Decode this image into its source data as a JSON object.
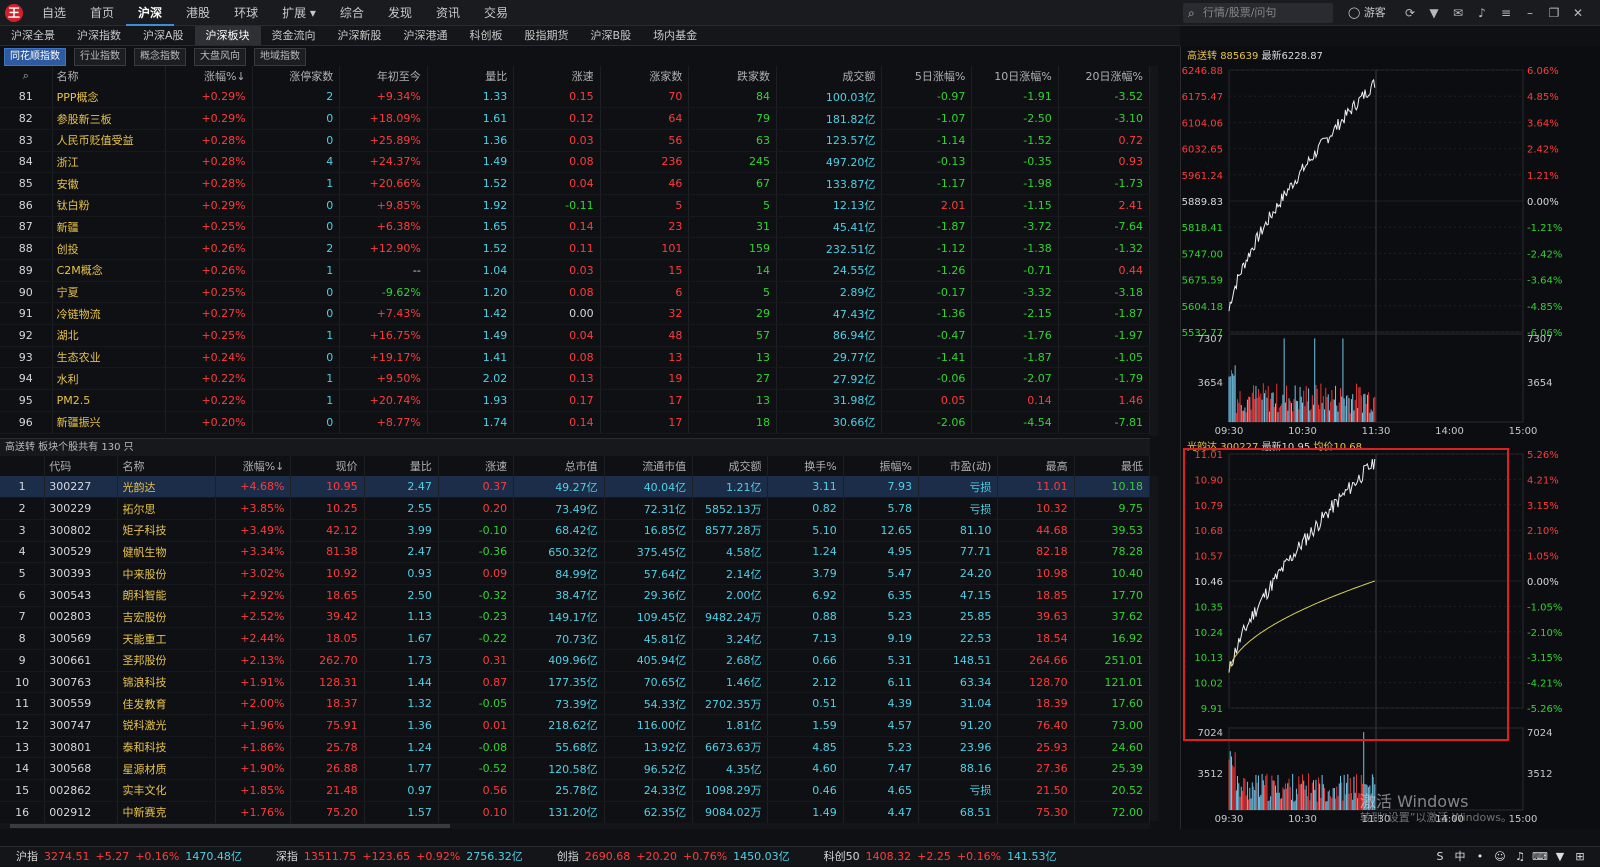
{
  "app": {
    "logo_char": "王"
  },
  "topnav": [
    "自选",
    "首页",
    "沪深",
    "港股",
    "环球",
    "扩展 ▾",
    "综合",
    "发现",
    "资讯",
    "交易"
  ],
  "search": {
    "placeholder": "行情/股票/问句"
  },
  "user": "游客",
  "tabs1": [
    "沪深全景",
    "沪深指数",
    "沪深A股",
    "沪深板块",
    "资金流向",
    "沪深新股",
    "沪深港通",
    "科创板",
    "股指期货",
    "沪深B股",
    "场内基金"
  ],
  "tabs2": [
    "同花顺指数",
    "行业指数",
    "概念指数",
    "大盘风向",
    "地域指数"
  ],
  "table1": {
    "headers": [
      "",
      "名称",
      "涨幅%↓",
      "涨停家数",
      "年初至今",
      "量比",
      "涨速",
      "涨家数",
      "跌家数",
      "成交额",
      "5日涨幅%",
      "10日涨幅%",
      "20日涨幅%"
    ],
    "rows": [
      [
        "81",
        "PPP概念",
        "+0.29%",
        "2",
        "+9.34%",
        "1.33",
        "0.15",
        "70",
        "84",
        "100.03亿",
        "-0.97",
        "-1.91",
        "-3.52"
      ],
      [
        "82",
        "参股新三板",
        "+0.29%",
        "0",
        "+18.09%",
        "1.61",
        "0.12",
        "64",
        "79",
        "181.82亿",
        "-1.07",
        "-2.50",
        "-3.10"
      ],
      [
        "83",
        "人民币贬值受益",
        "+0.28%",
        "0",
        "+25.89%",
        "1.36",
        "0.03",
        "56",
        "63",
        "123.57亿",
        "-1.14",
        "-1.52",
        "0.72"
      ],
      [
        "84",
        "浙江",
        "+0.28%",
        "4",
        "+24.37%",
        "1.49",
        "0.08",
        "236",
        "245",
        "497.20亿",
        "-0.13",
        "-0.35",
        "0.93"
      ],
      [
        "85",
        "安徽",
        "+0.28%",
        "1",
        "+20.66%",
        "1.52",
        "0.04",
        "46",
        "67",
        "133.87亿",
        "-1.17",
        "-1.98",
        "-1.73"
      ],
      [
        "86",
        "钛白粉",
        "+0.29%",
        "0",
        "+9.85%",
        "1.92",
        "-0.11",
        "5",
        "5",
        "12.13亿",
        "2.01",
        "-1.15",
        "2.41"
      ],
      [
        "87",
        "新疆",
        "+0.25%",
        "0",
        "+6.38%",
        "1.65",
        "0.14",
        "23",
        "31",
        "45.41亿",
        "-1.87",
        "-3.72",
        "-7.64"
      ],
      [
        "88",
        "创投",
        "+0.26%",
        "2",
        "+12.90%",
        "1.52",
        "0.11",
        "101",
        "159",
        "232.51亿",
        "-1.12",
        "-1.38",
        "-1.32"
      ],
      [
        "89",
        "C2M概念",
        "+0.26%",
        "1",
        "--",
        "1.04",
        "0.03",
        "15",
        "14",
        "24.55亿",
        "-1.26",
        "-0.71",
        "0.44"
      ],
      [
        "90",
        "宁夏",
        "+0.25%",
        "0",
        "-9.62%",
        "1.20",
        "0.08",
        "6",
        "5",
        "2.89亿",
        "-0.17",
        "-3.32",
        "-3.18"
      ],
      [
        "91",
        "冷链物流",
        "+0.27%",
        "0",
        "+7.43%",
        "1.42",
        "0.00",
        "32",
        "29",
        "47.43亿",
        "-1.36",
        "-2.15",
        "-1.87"
      ],
      [
        "92",
        "湖北",
        "+0.25%",
        "1",
        "+16.75%",
        "1.49",
        "0.04",
        "48",
        "57",
        "86.94亿",
        "-0.47",
        "-1.76",
        "-1.97"
      ],
      [
        "93",
        "生态农业",
        "+0.24%",
        "0",
        "+19.17%",
        "1.41",
        "0.08",
        "13",
        "13",
        "29.77亿",
        "-1.41",
        "-1.87",
        "-1.05"
      ],
      [
        "94",
        "水利",
        "+0.22%",
        "1",
        "+9.50%",
        "2.02",
        "0.13",
        "19",
        "27",
        "27.92亿",
        "-0.06",
        "-2.07",
        "-1.79"
      ],
      [
        "95",
        "PM2.5",
        "+0.22%",
        "1",
        "+20.74%",
        "1.93",
        "0.17",
        "17",
        "13",
        "31.98亿",
        "0.05",
        "0.14",
        "1.46"
      ],
      [
        "96",
        "新疆振兴",
        "+0.20%",
        "0",
        "+8.77%",
        "1.74",
        "0.14",
        "17",
        "18",
        "30.66亿",
        "-2.06",
        "-4.54",
        "-7.81"
      ]
    ]
  },
  "sep_label": "高送转  板块个股共有 130 只",
  "table2": {
    "headers": [
      "",
      "代码",
      "名称",
      "涨幅%↓",
      "现价",
      "量比",
      "涨速",
      "总市值",
      "流通市值",
      "成交额",
      "换手%",
      "振幅%",
      "市盈(动)",
      "最高",
      "最低"
    ],
    "rows": [
      [
        "1",
        "300227",
        "光韵达",
        "+4.68%",
        "10.95",
        "2.47",
        "0.37",
        "49.27亿",
        "40.04亿",
        "1.21亿",
        "3.11",
        "7.93",
        "亏损",
        "11.01",
        "10.18"
      ],
      [
        "2",
        "300229",
        "拓尔思",
        "+3.85%",
        "10.25",
        "2.55",
        "0.20",
        "73.49亿",
        "72.31亿",
        "5852.13万",
        "0.82",
        "5.78",
        "亏损",
        "10.32",
        "9.75"
      ],
      [
        "3",
        "300802",
        "矩子科技",
        "+3.49%",
        "42.12",
        "3.99",
        "-0.10",
        "68.42亿",
        "16.85亿",
        "8577.28万",
        "5.10",
        "12.65",
        "81.10",
        "44.68",
        "39.53"
      ],
      [
        "4",
        "300529",
        "健帆生物",
        "+3.34%",
        "81.38",
        "2.47",
        "-0.36",
        "650.32亿",
        "375.45亿",
        "4.58亿",
        "1.24",
        "4.95",
        "77.71",
        "82.18",
        "78.28"
      ],
      [
        "5",
        "300393",
        "中来股份",
        "+3.02%",
        "10.92",
        "0.93",
        "0.09",
        "84.99亿",
        "57.64亿",
        "2.14亿",
        "3.79",
        "5.47",
        "24.20",
        "10.98",
        "10.40"
      ],
      [
        "6",
        "300543",
        "朗科智能",
        "+2.92%",
        "18.65",
        "2.50",
        "-0.32",
        "38.47亿",
        "29.36亿",
        "2.00亿",
        "6.92",
        "6.35",
        "47.15",
        "18.85",
        "17.70"
      ],
      [
        "7",
        "002803",
        "吉宏股份",
        "+2.52%",
        "39.42",
        "1.13",
        "-0.23",
        "149.17亿",
        "109.45亿",
        "9482.24万",
        "0.88",
        "5.23",
        "25.85",
        "39.63",
        "37.62"
      ],
      [
        "8",
        "300569",
        "天能重工",
        "+2.44%",
        "18.05",
        "1.67",
        "-0.22",
        "70.73亿",
        "45.81亿",
        "3.24亿",
        "7.13",
        "9.19",
        "22.53",
        "18.54",
        "16.92"
      ],
      [
        "9",
        "300661",
        "圣邦股份",
        "+2.13%",
        "262.70",
        "1.73",
        "0.31",
        "409.96亿",
        "405.94亿",
        "2.68亿",
        "0.66",
        "5.31",
        "148.51",
        "264.66",
        "251.01"
      ],
      [
        "10",
        "300763",
        "锦浪科技",
        "+1.91%",
        "128.31",
        "1.44",
        "0.87",
        "177.35亿",
        "70.65亿",
        "1.46亿",
        "2.12",
        "6.11",
        "63.34",
        "128.70",
        "121.01"
      ],
      [
        "11",
        "300559",
        "佳发教育",
        "+2.00%",
        "18.37",
        "1.32",
        "-0.05",
        "73.39亿",
        "54.33亿",
        "2702.35万",
        "0.51",
        "4.39",
        "31.04",
        "18.39",
        "17.60"
      ],
      [
        "12",
        "300747",
        "锐科激光",
        "+1.96%",
        "75.91",
        "1.36",
        "0.01",
        "218.62亿",
        "116.00亿",
        "1.81亿",
        "1.59",
        "4.57",
        "91.20",
        "76.40",
        "73.00"
      ],
      [
        "13",
        "300801",
        "泰和科技",
        "+1.86%",
        "25.78",
        "1.24",
        "-0.08",
        "55.68亿",
        "13.92亿",
        "6673.63万",
        "4.85",
        "5.23",
        "23.96",
        "25.93",
        "24.60"
      ],
      [
        "14",
        "300568",
        "星源材质",
        "+1.90%",
        "26.88",
        "1.77",
        "-0.52",
        "120.58亿",
        "96.52亿",
        "4.35亿",
        "4.60",
        "7.47",
        "88.16",
        "27.36",
        "25.39"
      ],
      [
        "15",
        "002862",
        "实丰文化",
        "+1.85%",
        "21.48",
        "0.97",
        "0.56",
        "25.78亿",
        "24.33亿",
        "1098.29万",
        "0.46",
        "4.65",
        "亏损",
        "21.50",
        "20.52"
      ],
      [
        "16",
        "002912",
        "中新赛克",
        "+1.76%",
        "75.20",
        "1.57",
        "0.10",
        "131.20亿",
        "62.35亿",
        "9084.02万",
        "1.49",
        "4.47",
        "68.51",
        "75.30",
        "72.00"
      ]
    ]
  },
  "chart_top": {
    "title_name": "高送转",
    "title_code": "885639",
    "title_latest": "最新6228.87",
    "y_left": [
      "6246.88",
      "6175.47",
      "6104.06",
      "6032.65",
      "5961.24",
      "5889.83",
      "5818.41",
      "5747.00",
      "5675.59",
      "5604.18",
      "5532.77"
    ],
    "y_right": [
      "6.06%",
      "4.85%",
      "3.64%",
      "2.42%",
      "1.21%",
      "0.00%",
      "-1.21%",
      "-2.42%",
      "-3.64%",
      "-4.85%",
      "-6.06%"
    ],
    "vol_left": [
      "7307",
      "3654"
    ],
    "vol_right": [
      "7307",
      "3654"
    ],
    "x_ticks": [
      "09:30",
      "10:30",
      "11:30",
      "14:00",
      "15:00"
    ]
  },
  "chart_bottom": {
    "title_name": "光韵达",
    "title_code": "300227",
    "title_latest": "最新10.95",
    "title_avg": "均价10.68",
    "y_left": [
      "11.01",
      "10.90",
      "10.79",
      "10.68",
      "10.57",
      "10.46",
      "10.35",
      "10.24",
      "10.13",
      "10.02",
      "9.91"
    ],
    "y_right": [
      "5.26%",
      "4.21%",
      "3.15%",
      "2.10%",
      "1.05%",
      "0.00%",
      "-1.05%",
      "-2.10%",
      "-3.15%",
      "-4.21%",
      "-5.26%"
    ],
    "vol_left": [
      "7024",
      "3512"
    ],
    "vol_right": [
      "7024",
      "3512"
    ],
    "x_ticks": [
      "09:30",
      "10:30",
      "11:30",
      "14:00",
      "15:00"
    ]
  },
  "status": {
    "items": [
      {
        "name": "沪指",
        "vals": [
          "3274.51",
          "+5.27",
          "+0.16%",
          "1470.48亿"
        ]
      },
      {
        "name": "深指",
        "vals": [
          "13511.75",
          "+123.65",
          "+0.92%",
          "2756.32亿"
        ]
      },
      {
        "name": "创指",
        "vals": [
          "2690.68",
          "+20.20",
          "+0.76%",
          "1450.03亿"
        ]
      },
      {
        "name": "科创50",
        "vals": [
          "1408.32",
          "+2.25",
          "+0.16%",
          "141.53亿"
        ]
      }
    ]
  },
  "watermark": {
    "line1": "激活 Windows",
    "line2": "转到“设置”以激活 Windows。"
  },
  "colors": {
    "up": "#ff3b3b",
    "down": "#32d332",
    "accent": "#3b8ede",
    "highlight_box": "#e02020"
  }
}
